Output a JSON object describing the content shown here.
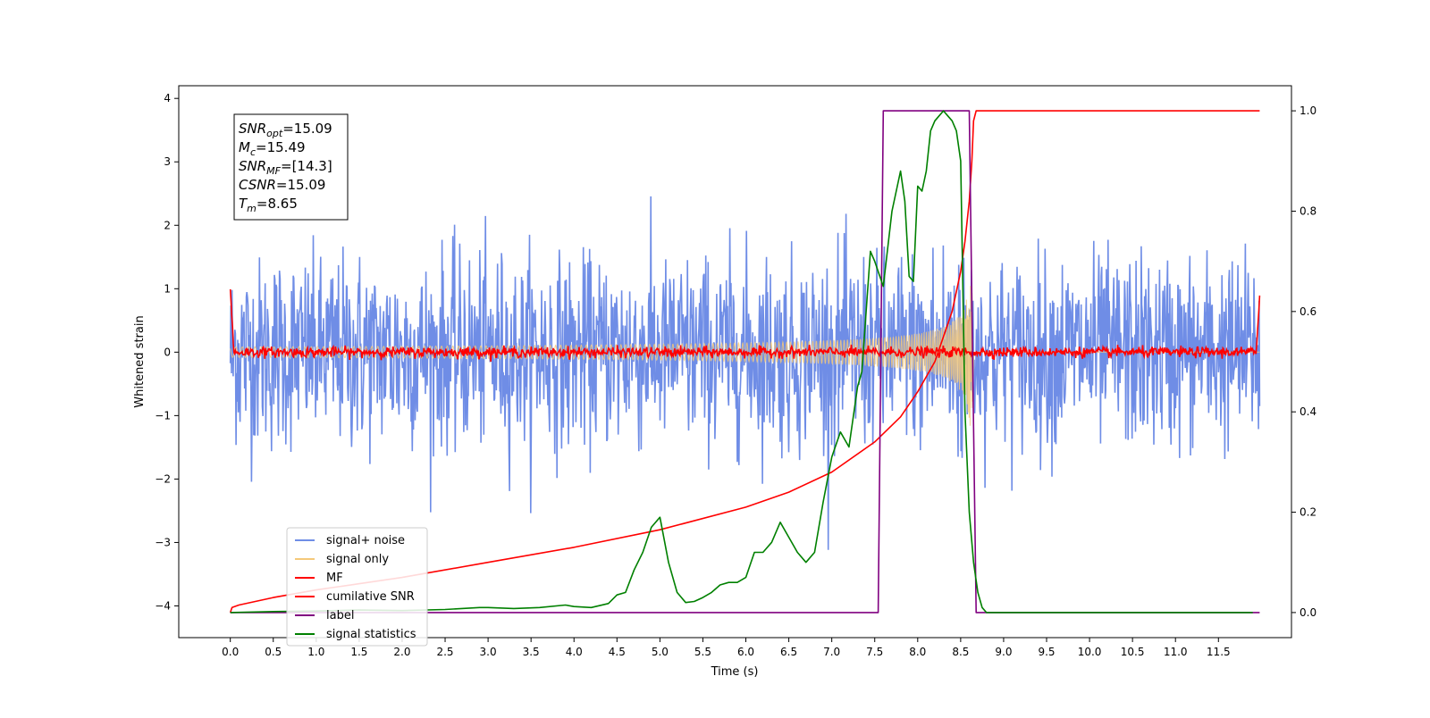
{
  "chart_data": {
    "type": "line",
    "title": "",
    "xlabel": "Time (s)",
    "ylabel": "Whitened strain",
    "xlim": [
      -0.6,
      12.35
    ],
    "ylim": [
      -4.5,
      4.2
    ],
    "y2lim": [
      -0.05,
      1.05
    ],
    "x_ticks": [
      0.0,
      0.5,
      1.0,
      1.5,
      2.0,
      2.5,
      3.0,
      3.5,
      4.0,
      4.5,
      5.0,
      5.5,
      6.0,
      6.5,
      7.0,
      7.5,
      8.0,
      8.5,
      9.0,
      9.5,
      10.0,
      10.5,
      11.0,
      11.5
    ],
    "x_tick_labels": [
      "0.0",
      "0.5",
      "1.0",
      "1.5",
      "2.0",
      "2.5",
      "3.0",
      "3.5",
      "4.0",
      "4.5",
      "5.0",
      "5.5",
      "6.0",
      "6.5",
      "7.0",
      "7.5",
      "8.0",
      "8.5",
      "9.0",
      "9.5",
      "10.0",
      "10.5",
      "11.0",
      "11.5"
    ],
    "y_ticks": [
      -4,
      -3,
      -2,
      -1,
      0,
      1,
      2,
      3,
      4
    ],
    "y_tick_labels": [
      "−4",
      "−3",
      "−2",
      "−1",
      "0",
      "1",
      "2",
      "3",
      "4"
    ],
    "y2_ticks": [
      0.0,
      0.2,
      0.4,
      0.6,
      0.8,
      1.0
    ],
    "y2_tick_labels": [
      "0.0",
      "0.2",
      "0.4",
      "0.6",
      "0.8",
      "1.0"
    ],
    "grid": false,
    "legend_position": "lower-left",
    "annotation": {
      "lines": [
        {
          "base": "SNR",
          "sub": "opt",
          "rest": "=15.09"
        },
        {
          "base": "M",
          "sub": "c",
          "rest": "=15.49"
        },
        {
          "base": "SNR",
          "sub": "MF",
          "rest": "=[14.3]"
        },
        {
          "base": "CSNR",
          "sub": "",
          "rest": "=15.09"
        },
        {
          "base": "T",
          "sub": "m",
          "rest": "=8.65"
        }
      ]
    },
    "series": [
      {
        "name": "signal+ noise",
        "axis": "left",
        "color": "#6f8de6",
        "style": "noise",
        "amplitude_sd": 0.75,
        "duration": [
          0,
          11.98
        ]
      },
      {
        "name": "signal only",
        "axis": "left",
        "color": "#f5c97a",
        "style": "chirp",
        "merger_time": 8.65,
        "peak_amplitude": 1.2,
        "duration": [
          0,
          11.98
        ]
      },
      {
        "name": "MF",
        "axis": "left",
        "color": "#ff0000",
        "style": "noise",
        "amplitude_sd": 0.04,
        "edges": {
          "start": 1.0,
          "end": 0.95
        },
        "duration": [
          0,
          11.98
        ]
      },
      {
        "name": "cumilative SNR",
        "axis": "right",
        "color": "#ff0000",
        "x": [
          0,
          0.02,
          0.1,
          0.5,
          1.0,
          2.0,
          3.0,
          4.0,
          5.0,
          6.0,
          6.5,
          7.0,
          7.5,
          7.8,
          8.0,
          8.2,
          8.4,
          8.5,
          8.55,
          8.6,
          8.63,
          8.65,
          8.68,
          11.98
        ],
        "y": [
          0.0,
          0.01,
          0.015,
          0.03,
          0.045,
          0.07,
          0.1,
          0.13,
          0.165,
          0.21,
          0.24,
          0.28,
          0.34,
          0.39,
          0.44,
          0.5,
          0.6,
          0.68,
          0.74,
          0.82,
          0.9,
          0.98,
          1.0,
          1.0
        ]
      },
      {
        "name": "label",
        "axis": "right",
        "color": "#800080",
        "x": [
          0,
          7.54,
          7.6,
          8.6,
          8.64,
          8.68,
          11.98
        ],
        "y": [
          0,
          0,
          1.0,
          1.0,
          0.5,
          0,
          0
        ]
      },
      {
        "name": "signal statistics",
        "axis": "right",
        "color": "#008000",
        "x": [
          0,
          0.5,
          1.0,
          1.5,
          2.0,
          2.5,
          2.9,
          3.0,
          3.3,
          3.6,
          3.9,
          4.0,
          4.2,
          4.4,
          4.5,
          4.6,
          4.7,
          4.8,
          4.9,
          5.0,
          5.1,
          5.2,
          5.3,
          5.4,
          5.5,
          5.6,
          5.7,
          5.8,
          5.9,
          6.0,
          6.1,
          6.2,
          6.3,
          6.4,
          6.5,
          6.6,
          6.7,
          6.8,
          6.9,
          7.0,
          7.1,
          7.2,
          7.3,
          7.35,
          7.45,
          7.5,
          7.6,
          7.7,
          7.8,
          7.85,
          7.9,
          7.95,
          8.0,
          8.05,
          8.1,
          8.15,
          8.2,
          8.25,
          8.3,
          8.35,
          8.4,
          8.45,
          8.5,
          8.55,
          8.6,
          8.65,
          8.7,
          8.75,
          8.8,
          8.85,
          9.0,
          10.0,
          11.0,
          11.9
        ],
        "y": [
          0.0,
          0.002,
          0.003,
          0.005,
          0.004,
          0.006,
          0.01,
          0.01,
          0.008,
          0.01,
          0.015,
          0.012,
          0.01,
          0.018,
          0.035,
          0.04,
          0.085,
          0.12,
          0.17,
          0.19,
          0.1,
          0.04,
          0.02,
          0.022,
          0.03,
          0.04,
          0.055,
          0.06,
          0.06,
          0.07,
          0.12,
          0.12,
          0.14,
          0.18,
          0.15,
          0.12,
          0.1,
          0.12,
          0.22,
          0.31,
          0.36,
          0.33,
          0.45,
          0.48,
          0.72,
          0.7,
          0.65,
          0.8,
          0.88,
          0.82,
          0.67,
          0.66,
          0.85,
          0.84,
          0.88,
          0.96,
          0.98,
          0.99,
          1.0,
          0.99,
          0.98,
          0.96,
          0.9,
          0.4,
          0.2,
          0.1,
          0.04,
          0.01,
          0.0,
          0.0,
          0.0,
          0.0,
          0.0,
          0.0
        ]
      }
    ]
  }
}
